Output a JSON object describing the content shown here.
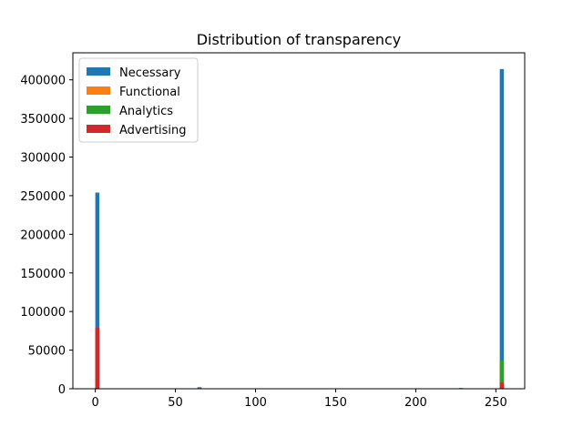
{
  "chart_data": {
    "type": "bar",
    "title": "Distribution of transparency",
    "xlabel": "",
    "ylabel": "",
    "xlim": [
      -14,
      268
    ],
    "ylim": [
      0,
      435000
    ],
    "xticks": [
      0,
      50,
      100,
      150,
      200,
      250
    ],
    "yticks": [
      0,
      50000,
      100000,
      150000,
      200000,
      250000,
      300000,
      350000,
      400000
    ],
    "grid": false,
    "legend_placement": "top-left",
    "series": [
      {
        "name": "Necessary",
        "color": "#1f77b4",
        "bins": [
          {
            "x0": 0,
            "x1": 2.55,
            "value": 254000
          },
          {
            "x0": 63.75,
            "x1": 66.3,
            "value": 2000
          },
          {
            "x0": 227.0,
            "x1": 229.5,
            "value": 1000
          },
          {
            "x0": 252.45,
            "x1": 255,
            "value": 414000
          }
        ]
      },
      {
        "name": "Functional",
        "color": "#ff7f0e",
        "bins": [
          {
            "x0": 0,
            "x1": 2.55,
            "value": 72000
          },
          {
            "x0": 252.45,
            "x1": 255,
            "value": 36000
          }
        ]
      },
      {
        "name": "Analytics",
        "color": "#2ca02c",
        "bins": [
          {
            "x0": 0,
            "x1": 2.55,
            "value": 75000
          },
          {
            "x0": 252.45,
            "x1": 255,
            "value": 37000
          }
        ]
      },
      {
        "name": "Advertising",
        "color": "#d62728",
        "bins": [
          {
            "x0": 0,
            "x1": 2.55,
            "value": 79000
          },
          {
            "x0": 252.45,
            "x1": 255,
            "value": 8000
          }
        ]
      }
    ]
  }
}
